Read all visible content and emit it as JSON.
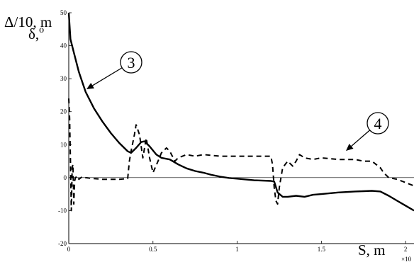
{
  "chart_data": {
    "type": "line",
    "title": "",
    "ylabel_line1": "Δ/10, m",
    "ylabel_line2": "δ,",
    "ylabel_line2_sup": "o",
    "xlabel": "S, m",
    "x_multiplier": "×10",
    "xlim": [
      0,
      2.05
    ],
    "ylim": [
      -20,
      50
    ],
    "x_ticks": [
      0,
      0.5,
      1,
      1.5,
      2
    ],
    "x_tick_labels": [
      "0",
      "0.5",
      "1",
      "1.5",
      "2"
    ],
    "y_ticks": [
      -20,
      -10,
      0,
      10,
      20,
      30,
      40,
      50
    ],
    "y_tick_labels": [
      "-20",
      "-10",
      "0",
      "10",
      "20",
      "30",
      "40",
      "50"
    ],
    "grid": false,
    "series": [
      {
        "name": "3",
        "style": "solid",
        "x": [
          0,
          0.01,
          0.03,
          0.06,
          0.1,
          0.15,
          0.2,
          0.25,
          0.3,
          0.35,
          0.37,
          0.4,
          0.43,
          0.45,
          0.48,
          0.52,
          0.55,
          0.6,
          0.65,
          0.7,
          0.75,
          0.8,
          0.85,
          0.9,
          0.95,
          1.0,
          1.1,
          1.2,
          1.22,
          1.24,
          1.27,
          1.3,
          1.35,
          1.4,
          1.45,
          1.5,
          1.6,
          1.7,
          1.75,
          1.8,
          1.85,
          1.9,
          1.95,
          2.0,
          2.05
        ],
        "y": [
          50,
          42,
          38,
          32,
          26,
          21,
          17,
          13.5,
          10.5,
          8,
          7.5,
          9,
          10.8,
          11,
          9.5,
          7,
          6,
          5.5,
          4,
          2.8,
          2,
          1.5,
          0.8,
          0.3,
          -0.1,
          -0.3,
          -0.8,
          -1.0,
          -1.2,
          -4.5,
          -5.8,
          -5.8,
          -5.5,
          -5.8,
          -5.2,
          -5,
          -4.5,
          -4.2,
          -4.1,
          -4.0,
          -4.2,
          -5.5,
          -7,
          -8.5,
          -10
        ]
      },
      {
        "name": "4",
        "style": "dashed",
        "x": [
          0,
          0.005,
          0.01,
          0.015,
          0.02,
          0.025,
          0.03,
          0.035,
          0.04,
          0.05,
          0.06,
          0.08,
          0.1,
          0.15,
          0.2,
          0.3,
          0.35,
          0.36,
          0.37,
          0.39,
          0.4,
          0.42,
          0.44,
          0.46,
          0.48,
          0.5,
          0.53,
          0.55,
          0.58,
          0.6,
          0.63,
          0.65,
          0.7,
          0.75,
          0.8,
          0.9,
          1.0,
          1.1,
          1.2,
          1.21,
          1.22,
          1.23,
          1.24,
          1.25,
          1.27,
          1.3,
          1.33,
          1.35,
          1.37,
          1.4,
          1.45,
          1.5,
          1.6,
          1.7,
          1.75,
          1.8,
          1.85,
          1.87,
          1.9,
          1.95,
          2.0,
          2.05
        ],
        "y": [
          24,
          18,
          5,
          -10,
          3,
          4,
          -8,
          -1,
          0,
          0.5,
          -0.5,
          0.3,
          0,
          -0.3,
          -0.5,
          -0.5,
          -0.3,
          5,
          8,
          13,
          16,
          13,
          6,
          12,
          6,
          1.5,
          5,
          7.5,
          9,
          8,
          5,
          6,
          7,
          6.5,
          7,
          6.5,
          6.5,
          6.5,
          6.5,
          4,
          -3,
          -7,
          -8,
          -3,
          3,
          5,
          3.5,
          5,
          7,
          6,
          5.5,
          6,
          5.5,
          5.5,
          5,
          5,
          3,
          1.5,
          0,
          -0.5,
          -1.5,
          -2.5
        ]
      }
    ],
    "annotations": [
      {
        "text": "3",
        "series": "3",
        "style": "circled"
      },
      {
        "text": "4",
        "series": "4",
        "style": "circled"
      }
    ]
  }
}
